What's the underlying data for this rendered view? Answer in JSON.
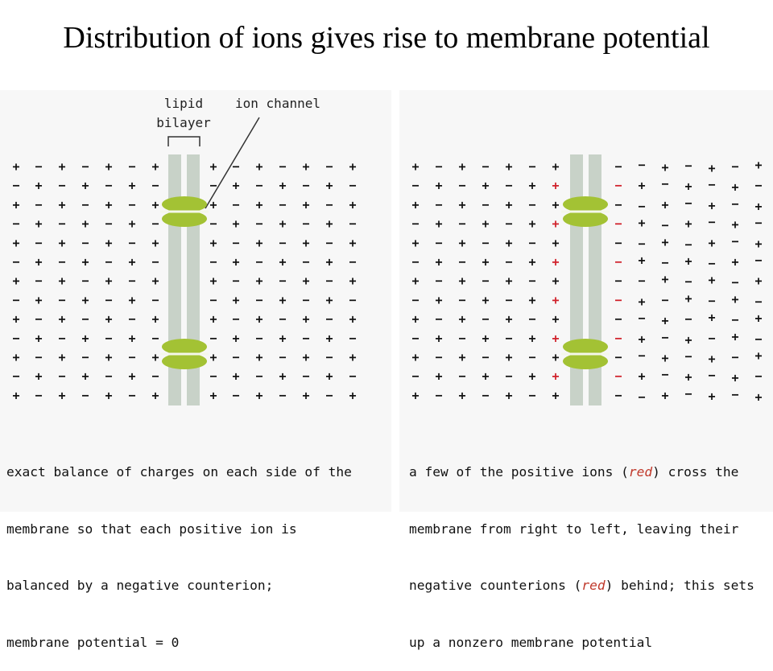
{
  "title": "Distribution of ions gives rise to membrane potential",
  "labels": {
    "lipid": "lipid",
    "bilayer": "bilayer",
    "ion_channel": "ion channel"
  },
  "symbols": {
    "plus": "+",
    "minus": "−"
  },
  "colors": {
    "channel": "#a3c234",
    "membrane": "#c8d2c8",
    "red_ion": "#d0202a",
    "ink": "#111111",
    "background": "#f7f7f7"
  },
  "captions": {
    "left": [
      "exact balance of charges on each side of the",
      "membrane so that each positive ion is",
      "balanced by a negative counterion;",
      "membrane potential = 0"
    ],
    "right_line1": "a few of the positive ions (",
    "right_red1": "red",
    "right_line1_end": ") cross the",
    "right_line2": "membrane from right to left, leaving their",
    "right_line3a": "negative counterions (",
    "right_red2": "red",
    "right_line3b": ") behind; this sets",
    "right_line4": "up a nonzero membrane potential"
  }
}
